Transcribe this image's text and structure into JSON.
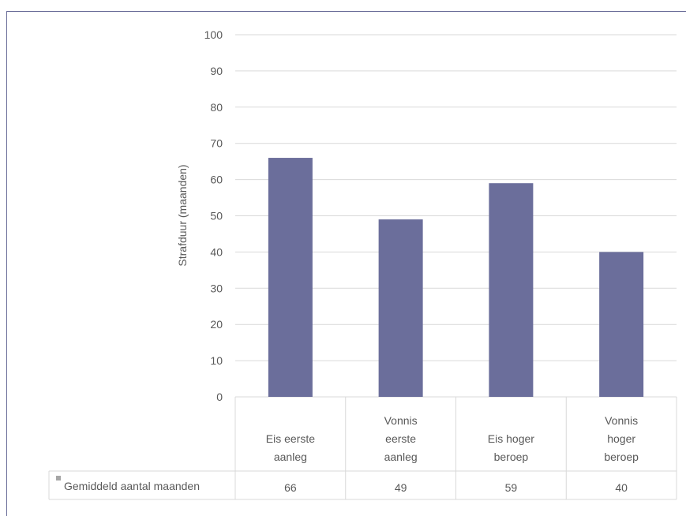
{
  "chart_data": {
    "type": "bar",
    "categories": [
      [
        "Eis eerste",
        "aanleg"
      ],
      [
        "Vonnis",
        "eerste",
        "aanleg"
      ],
      [
        "Eis hoger",
        "beroep"
      ],
      [
        "Vonnis",
        "hoger",
        "beroep"
      ]
    ],
    "series": [
      {
        "name": "Gemiddeld aantal maanden",
        "values": [
          66,
          49,
          59,
          40
        ],
        "color": "#6b6e9b"
      }
    ],
    "ylabel": "Strafduur (maanden)",
    "yticks": [
      "0",
      "10",
      "20",
      "30",
      "40",
      "50",
      "60",
      "70",
      "80",
      "90",
      "100"
    ],
    "ylim": [
      0,
      100
    ],
    "grid": true,
    "legend": "data-table-left"
  },
  "colors": {
    "bar": "#6b6e9b",
    "grid": "#d9d9d9",
    "frame": "#6a6d99",
    "legend_key": "#a6a6a6"
  }
}
